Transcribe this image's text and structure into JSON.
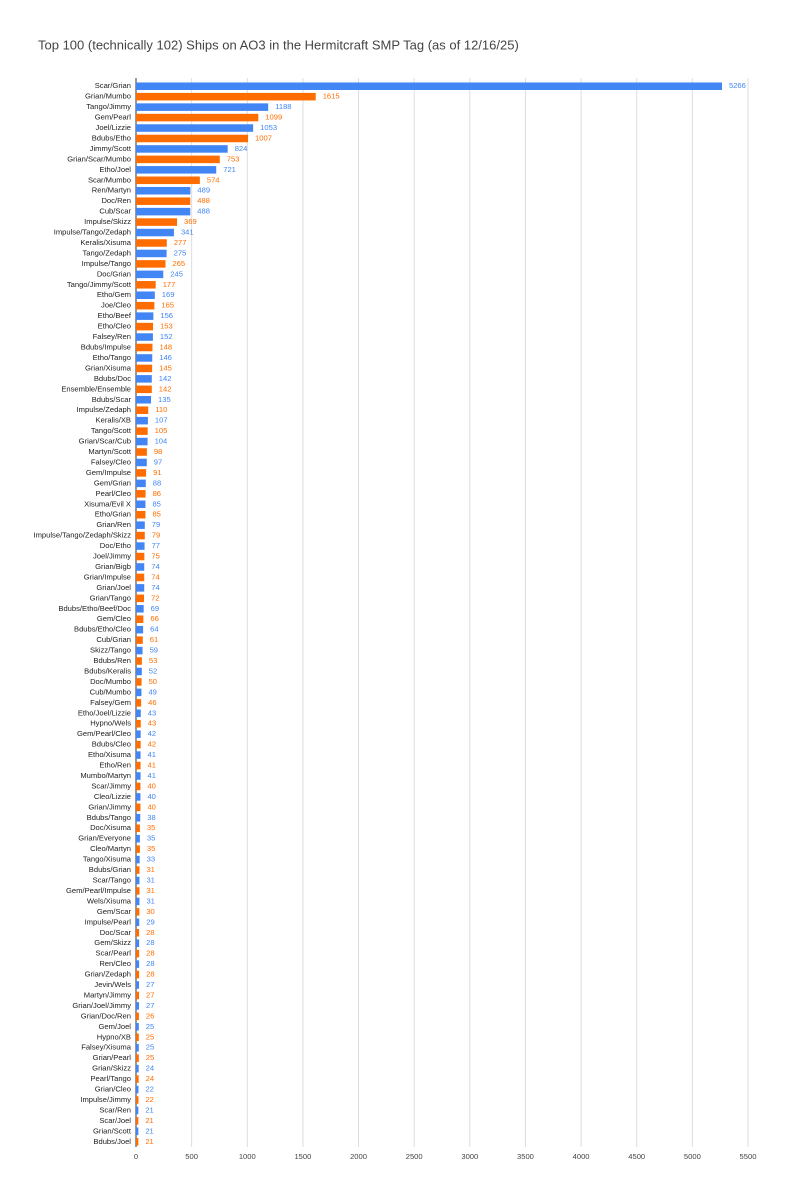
{
  "chart_data": {
    "type": "hbar",
    "title": "Top 100 (technically 102) Ships on AO3 in the Hermitcraft SMP Tag (as of 12/16/25)",
    "categories": [
      "Scar/Grian",
      "Grian/Mumbo",
      "Tango/Jimmy",
      "Gem/Pearl",
      "Joel/Lizzie",
      "Bdubs/Etho",
      "Jimmy/Scott",
      "Grian/Scar/Mumbo",
      "Etho/Joel",
      "Scar/Mumbo",
      "Ren/Martyn",
      "Doc/Ren",
      "Cub/Scar",
      "Impulse/Skizz",
      "Impulse/Tango/Zedaph",
      "Keralis/Xisuma",
      "Tango/Zedaph",
      "Impulse/Tango",
      "Doc/Grian",
      "Tango/Jimmy/Scott",
      "Etho/Gem",
      "Joe/Cleo",
      "Etho/Beef",
      "Etho/Cleo",
      "Falsey/Ren",
      "Bdubs/Impulse",
      "Etho/Tango",
      "Grian/Xisuma",
      "Bdubs/Doc",
      "Ensemble/Ensemble",
      "Bdubs/Scar",
      "Impulse/Zedaph",
      "Keralis/XB",
      "Tango/Scott",
      "Grian/Scar/Cub",
      "Martyn/Scott",
      "Falsey/Cleo",
      "Gem/Impulse",
      "Gem/Grian",
      "Pearl/Cleo",
      "Xisuma/Evil X",
      "Etho/Grian",
      "Grian/Ren",
      "Impulse/Tango/Zedaph/Skizz",
      "Doc/Etho",
      "Joel/Jimmy",
      "Grian/Bigb",
      "Grian/Impulse",
      "Grian/Joel",
      "Grian/Tango",
      "Bdubs/Etho/Beef/Doc",
      "Gem/Cleo",
      "Bdubs/Etho/Cleo",
      "Cub/Grian",
      "Skizz/Tango",
      "Bdubs/Ren",
      "Bdubs/Keralis",
      "Doc/Mumbo",
      "Cub/Mumbo",
      "Falsey/Gem",
      "Etho/Joel/Lizzie",
      "Hypno/Wels",
      "Gem/Pearl/Cleo",
      "Bdubs/Cleo",
      "Etho/Xisuma",
      "Etho/Ren",
      "Mumbo/Martyn",
      "Scar/Jimmy",
      "Cleo/Lizzie",
      "Grian/Jimmy",
      "Bdubs/Tango",
      "Doc/Xisuma",
      "Grian/Everyone",
      "Cleo/Martyn",
      "Tango/Xisuma",
      "Bdubs/Grian",
      "Scar/Tango",
      "Gem/Pearl/Impulse",
      "Wels/Xisuma",
      "Gem/Scar",
      "Impulse/Pearl",
      "Doc/Scar",
      "Gem/Skizz",
      "Scar/Pearl",
      "Ren/Cleo",
      "Grian/Zedaph",
      "Jevin/Wels",
      "Martyn/Jimmy",
      "Grian/Joel/Jimmy",
      "Grian/Doc/Ren",
      "Gem/Joel",
      "Hypno/XB",
      "Falsey/Xisuma",
      "Grian/Pearl",
      "Grian/Skizz",
      "Pearl/Tango",
      "Grian/Cleo",
      "Impulse/Jimmy",
      "Scar/Ren",
      "Scar/Joel",
      "Grian/Scott",
      "Bdubs/Joel"
    ],
    "values": [
      5266,
      1615,
      1188,
      1099,
      1053,
      1007,
      824,
      753,
      721,
      574,
      489,
      488,
      488,
      369,
      341,
      277,
      275,
      265,
      245,
      177,
      169,
      165,
      156,
      153,
      152,
      148,
      146,
      145,
      142,
      142,
      135,
      110,
      107,
      105,
      104,
      98,
      97,
      91,
      88,
      86,
      85,
      85,
      79,
      79,
      77,
      75,
      74,
      74,
      74,
      72,
      69,
      66,
      64,
      61,
      59,
      53,
      52,
      50,
      49,
      46,
      43,
      43,
      42,
      42,
      41,
      41,
      41,
      40,
      40,
      40,
      38,
      35,
      35,
      35,
      33,
      31,
      31,
      31,
      31,
      30,
      29,
      28,
      28,
      28,
      28,
      28,
      27,
      27,
      27,
      26,
      25,
      25,
      25,
      25,
      24,
      24,
      22,
      22,
      21,
      21,
      21,
      21
    ],
    "colors": [
      "#4285f4",
      "#ff6d01"
    ],
    "xlim": [
      0,
      5500
    ],
    "xticks": [
      0,
      500,
      1000,
      1500,
      2000,
      2500,
      3000,
      3500,
      4000,
      4500,
      5000,
      5500
    ],
    "grid": true
  }
}
